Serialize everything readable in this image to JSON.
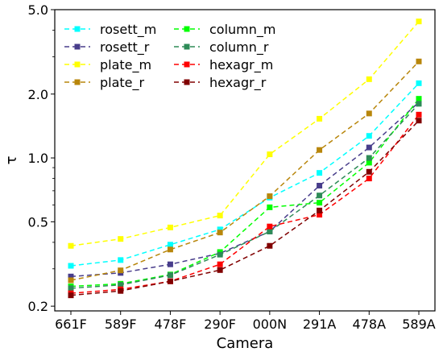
{
  "chart_data": {
    "type": "line",
    "xlabel": "Camera",
    "ylabel": "τ",
    "yscale": "log",
    "ylim": [
      0.19,
      5.0
    ],
    "grid": false,
    "legend_placement": "top-left",
    "categories": [
      "661F",
      "589F",
      "478F",
      "290F",
      "000N",
      "291A",
      "478A",
      "589A"
    ],
    "yticks": [
      {
        "value": 0.2,
        "label": "0.2"
      },
      {
        "value": 0.5,
        "label": "0.5"
      },
      {
        "value": 1.0,
        "label": "1.0"
      },
      {
        "value": 2.0,
        "label": "2.0"
      },
      {
        "value": 5.0,
        "label": "5.0"
      }
    ],
    "series": [
      {
        "name": "rosett_m",
        "color": "#00ffff",
        "values": [
          0.31,
          0.33,
          0.39,
          0.46,
          0.65,
          0.85,
          1.27,
          2.25
        ]
      },
      {
        "name": "rosett_r",
        "color": "#483d8b",
        "values": [
          0.276,
          0.287,
          0.315,
          0.355,
          0.45,
          0.74,
          1.12,
          1.83
        ]
      },
      {
        "name": "plate_m",
        "color": "#ffff00",
        "values": [
          0.385,
          0.415,
          0.47,
          0.535,
          1.04,
          1.53,
          2.35,
          4.4
        ]
      },
      {
        "name": "plate_r",
        "color": "#b8860b",
        "values": [
          0.265,
          0.295,
          0.37,
          0.445,
          0.66,
          1.09,
          1.62,
          2.85
        ]
      },
      {
        "name": "column_m",
        "color": "#00ff00",
        "values": [
          0.248,
          0.255,
          0.282,
          0.36,
          0.585,
          0.615,
          0.95,
          1.9
        ]
      },
      {
        "name": "column_r",
        "color": "#2e8b57",
        "values": [
          0.243,
          0.252,
          0.28,
          0.35,
          0.45,
          0.665,
          1.0,
          1.8
        ]
      },
      {
        "name": "hexagr_m",
        "color": "#ff0000",
        "values": [
          0.23,
          0.24,
          0.262,
          0.315,
          0.475,
          0.54,
          0.8,
          1.6
        ]
      },
      {
        "name": "hexagr_r",
        "color": "#800000",
        "values": [
          0.225,
          0.236,
          0.262,
          0.296,
          0.385,
          0.565,
          0.86,
          1.5
        ]
      }
    ]
  }
}
